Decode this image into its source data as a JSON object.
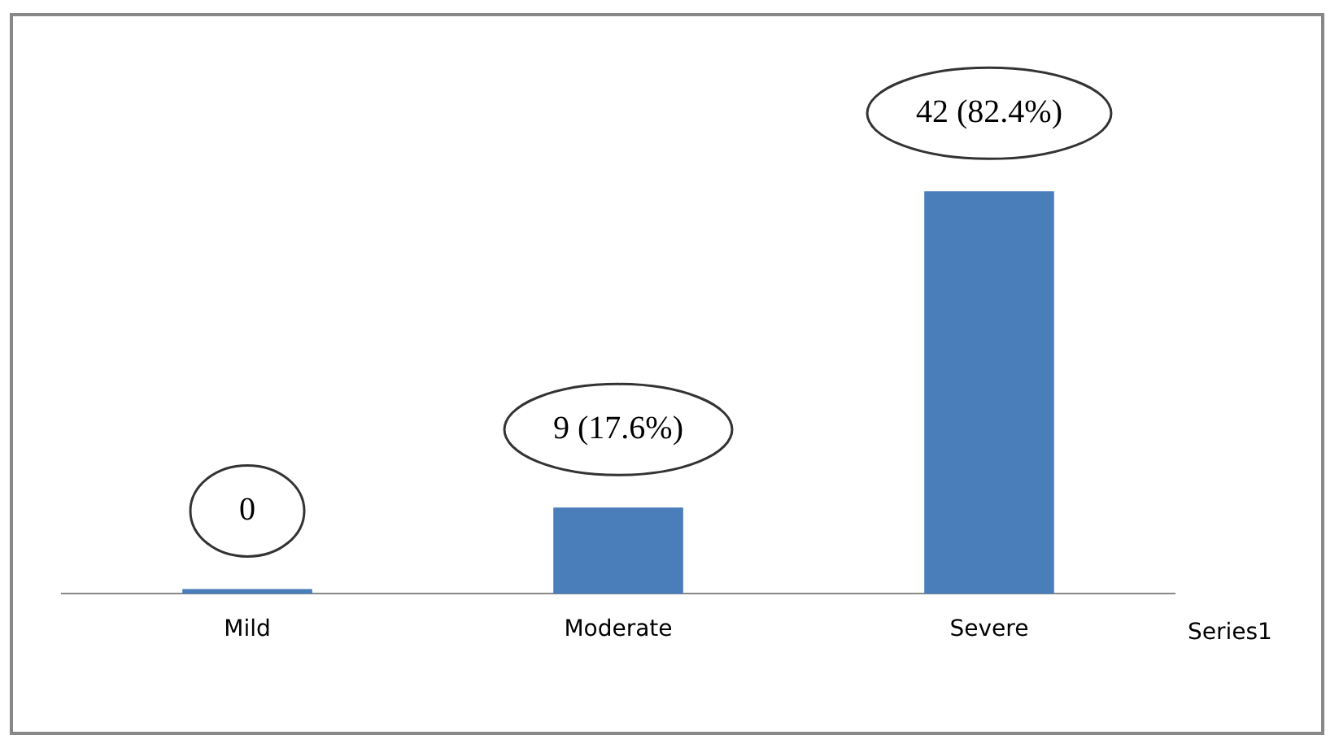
{
  "chart_data": {
    "type": "bar",
    "categories": [
      "Mild",
      "Moderate",
      "Severe"
    ],
    "series": [
      {
        "name": "Series1",
        "color": "#4a7ebb",
        "values": [
          0,
          9,
          42
        ],
        "value_labels": [
          "0",
          "9 (17.6%)",
          "42 (82.4%)"
        ]
      }
    ],
    "tick_labels": "x",
    "grid": false,
    "legend": false
  }
}
